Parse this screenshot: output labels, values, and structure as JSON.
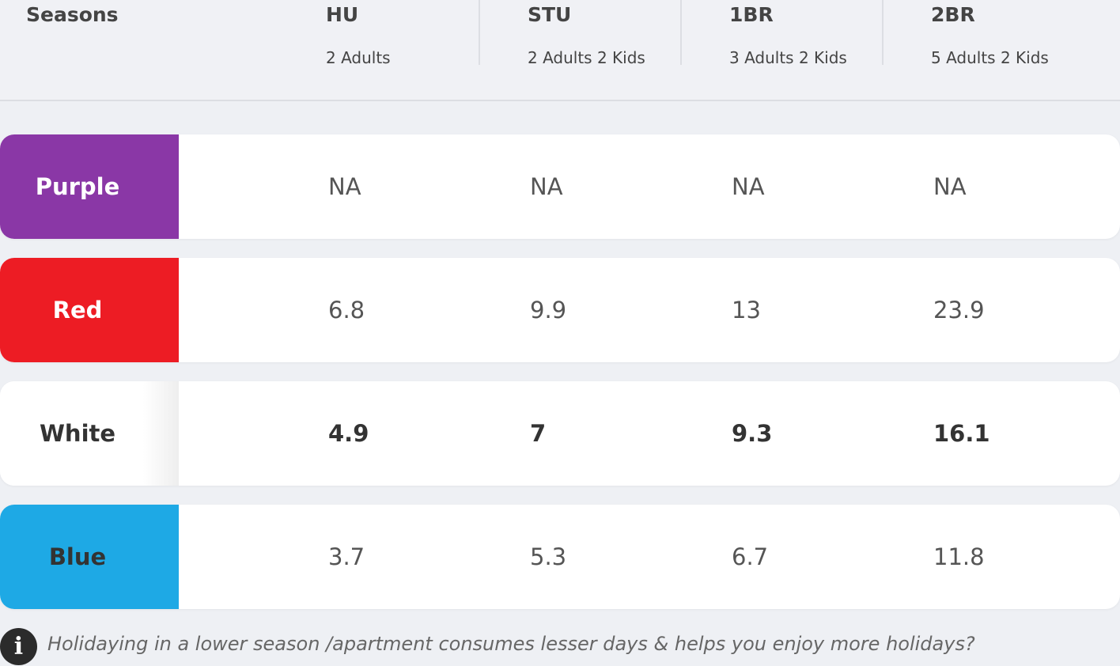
{
  "header": {
    "seasons_label": "Seasons",
    "columns": [
      {
        "code": "HU",
        "occupancy": "2 Adults"
      },
      {
        "code": "STU",
        "occupancy": "2 Adults 2 Kids"
      },
      {
        "code": "1BR",
        "occupancy": "3 Adults 2 Kids"
      },
      {
        "code": "2BR",
        "occupancy": "5 Adults 2 Kids"
      }
    ]
  },
  "rows": [
    {
      "season": "Purple",
      "color": "#8a37a6",
      "text_color": "#ffffff",
      "values": [
        "NA",
        "NA",
        "NA",
        "NA"
      ],
      "bold": false
    },
    {
      "season": "Red",
      "color": "#ed1c24",
      "text_color": "#ffffff",
      "values": [
        "6.8",
        "9.9",
        "13",
        "23.9"
      ],
      "bold": false
    },
    {
      "season": "White",
      "color": "#ffffff",
      "text_color": "#333333",
      "values": [
        "4.9",
        "7",
        "9.3",
        "16.1"
      ],
      "bold": true
    },
    {
      "season": "Blue",
      "color": "#1ea9e5",
      "text_color": "#333333",
      "values": [
        "3.7",
        "5.3",
        "6.7",
        "11.8"
      ],
      "bold": false
    }
  ],
  "footer": {
    "icon": "info-icon",
    "text": "Holidaying in a lower season /apartment consumes lesser days & helps you enjoy more holidays?"
  }
}
